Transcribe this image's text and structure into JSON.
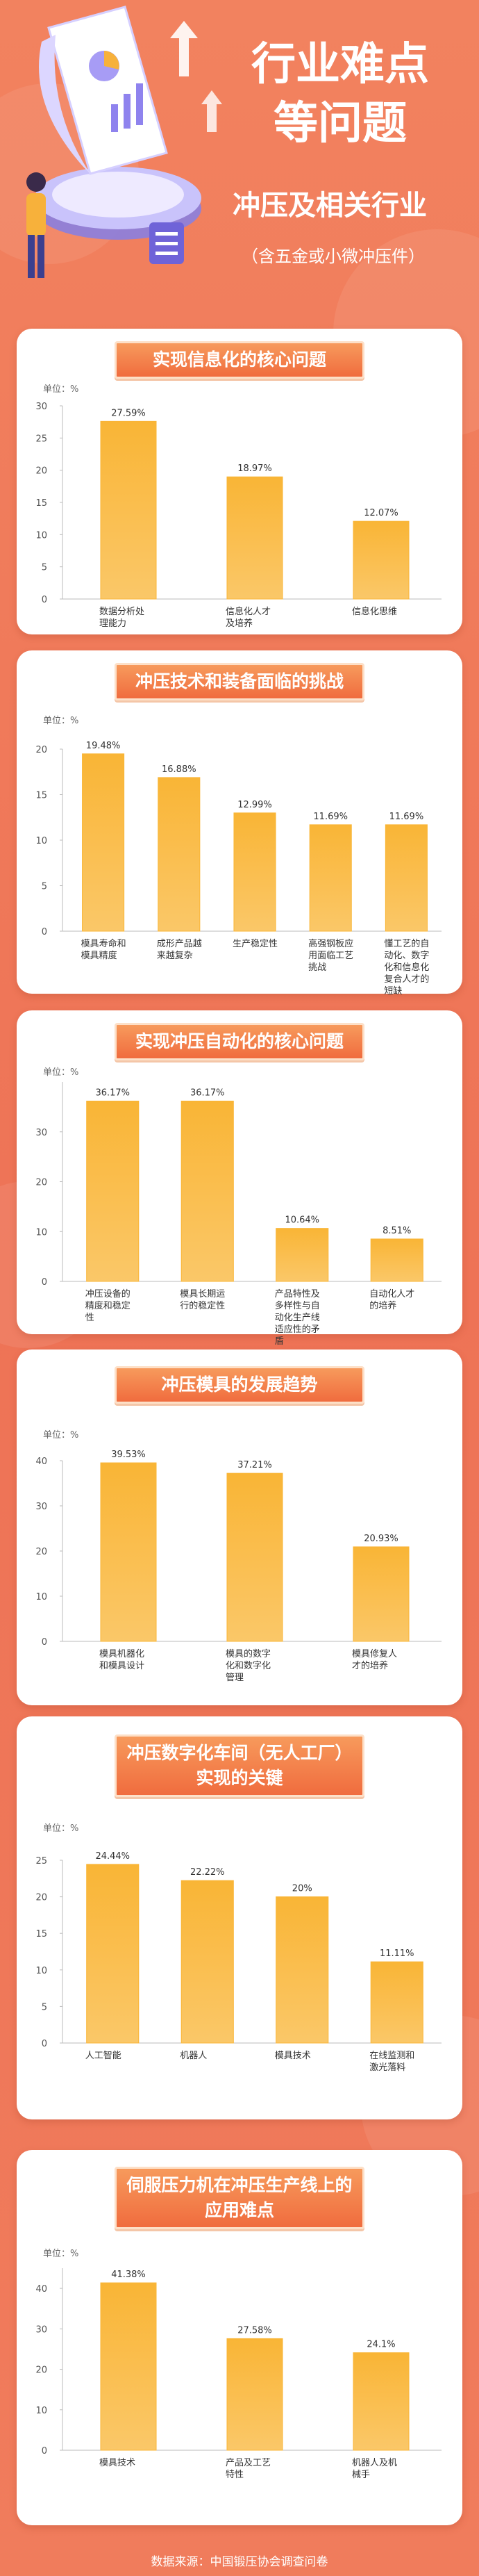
{
  "header": {
    "title_line1": "行业难点",
    "title_line2": "等问题",
    "subtitle": "冲压及相关行业",
    "note": "（含五金或小微冲压件）"
  },
  "chart_data": [
    {
      "type": "bar",
      "title": "实现信息化的核心问题",
      "unit": "单位：%",
      "color": "#f9b536",
      "categories": [
        "数据分析处理能力",
        "信息化人才及培养",
        "信息化思维"
      ],
      "values": [
        27.59,
        18.97,
        12.07
      ],
      "value_labels": [
        "27.59%",
        "18.97%",
        "12.07%"
      ],
      "ylim": [
        0,
        30
      ],
      "yticks": [
        0,
        5,
        10,
        15,
        20,
        25,
        30
      ]
    },
    {
      "type": "bar",
      "title": "冲压技术和装备面临的挑战",
      "unit": "单位：%",
      "color": "#f9b536",
      "categories": [
        "模具寿命和模具精度",
        "成形产品越来越复杂",
        "生产稳定性",
        "高强钢板应用面临工艺挑战",
        "懂工艺的自动化、数字化和信息化复合人才的短缺"
      ],
      "values": [
        19.48,
        16.88,
        12.99,
        11.69,
        11.69
      ],
      "value_labels": [
        "19.48%",
        "16.88%",
        "12.99%",
        "11.69%",
        "11.69%"
      ],
      "ylim": [
        0,
        20
      ],
      "yticks": [
        0,
        5,
        10,
        15,
        20
      ]
    },
    {
      "type": "bar",
      "title": "实现冲压自动化的核心问题",
      "unit": "单位：%",
      "color": "#f9b536",
      "categories": [
        "冲压设备的精度和稳定性",
        "模具长期运行的稳定性",
        "产品特性及多样性与自动化生产线适应性的矛盾",
        "自动化人才的培养"
      ],
      "values": [
        36.17,
        36.17,
        10.64,
        8.51
      ],
      "value_labels": [
        "36.17%",
        "36.17%",
        "10.64%",
        "8.51%"
      ],
      "ylim": [
        0,
        40
      ],
      "yticks": [
        0,
        10,
        20,
        30
      ]
    },
    {
      "type": "bar",
      "title": "冲压模具的发展趋势",
      "unit": "单位：%",
      "color": "#f9b536",
      "categories": [
        "模具机器化和模具设计",
        "模具的数字化和数字化管理",
        "模具修复人才的培养"
      ],
      "values": [
        39.53,
        37.21,
        20.93
      ],
      "value_labels": [
        "39.53%",
        "37.21%",
        "20.93%"
      ],
      "ylim": [
        0,
        40
      ],
      "yticks": [
        0,
        10,
        20,
        30,
        40
      ]
    },
    {
      "type": "bar",
      "title": "冲压数字化车间（无人工厂）实现的关键",
      "unit": "单位：%",
      "color": "#f9b536",
      "categories": [
        "人工智能",
        "机器人",
        "模具技术",
        "在线监测和激光落料"
      ],
      "values": [
        24.44,
        22.22,
        20,
        11.11
      ],
      "value_labels": [
        "24.44%",
        "22.22%",
        "20%",
        "11.11%"
      ],
      "ylim": [
        0,
        25
      ],
      "yticks": [
        0,
        5,
        10,
        15,
        20,
        25
      ]
    },
    {
      "type": "bar",
      "title": "伺服压力机在冲压生产线上的应用难点",
      "unit": "单位：%",
      "color": "#f9b536",
      "categories": [
        "模具技术",
        "产品及工艺特性",
        "机器人及机械手"
      ],
      "values": [
        41.38,
        27.58,
        24.1
      ],
      "value_labels": [
        "41.38%",
        "27.58%",
        "24.1%"
      ],
      "ylim": [
        0,
        45
      ],
      "yticks": [
        0,
        10,
        20,
        30,
        40
      ]
    }
  ],
  "footer": "数据来源：中国锻压协会调查问卷"
}
